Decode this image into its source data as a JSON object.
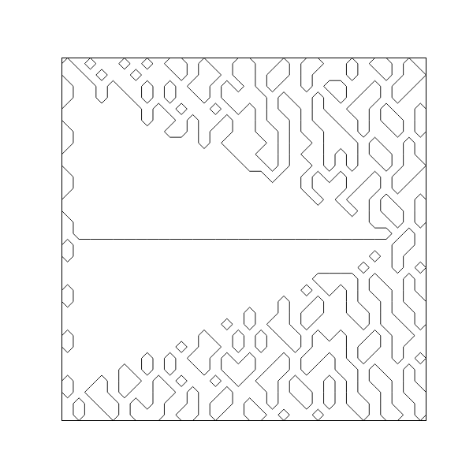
{
  "chart_data": {
    "type": "contour",
    "tick_labels": false,
    "color": "#000000",
    "xlim": [
      0,
      1
    ],
    "ylim": [
      -1,
      1
    ],
    "levels": [
      0
    ],
    "z": [
      [
        1,
        -1,
        1,
        -1,
        -1,
        1,
        -1,
        1,
        -1,
        1,
        1,
        -1,
        1,
        -1,
        -1,
        1,
        1,
        -1,
        -1,
        1,
        -1,
        1,
        1,
        -1,
        -1,
        1,
        -1,
        1,
        1,
        -1,
        1,
        -1
      ],
      [
        1,
        1,
        -1,
        1,
        -1,
        -1,
        1,
        -1,
        -1,
        -1,
        1,
        -1,
        1,
        1,
        -1,
        1,
        1,
        -1,
        1,
        1,
        -1,
        1,
        -1,
        -1,
        -1,
        1,
        -1,
        -1,
        1,
        -1,
        1,
        1
      ],
      [
        -1,
        1,
        1,
        -1,
        1,
        -1,
        -1,
        1,
        -1,
        1,
        -1,
        1,
        1,
        -1,
        1,
        -1,
        1,
        -1,
        1,
        -1,
        -1,
        1,
        -1,
        1,
        1,
        -1,
        -1,
        1,
        -1,
        1,
        1,
        -1
      ],
      [
        -1,
        1,
        1,
        -1,
        1,
        1,
        -1,
        1,
        -1,
        1,
        -1,
        -1,
        1,
        -1,
        1,
        1,
        1,
        1,
        -1,
        1,
        -1,
        -1,
        1,
        -1,
        1,
        -1,
        1,
        1,
        -1,
        1,
        -1,
        -1
      ],
      [
        1,
        1,
        1,
        1,
        1,
        1,
        1,
        -1,
        1,
        -1,
        1,
        -1,
        -1,
        1,
        -1,
        1,
        -1,
        1,
        -1,
        1,
        1,
        -1,
        1,
        -1,
        -1,
        1,
        1,
        -1,
        1,
        -1,
        -1,
        1
      ],
      [
        1,
        1,
        1,
        1,
        1,
        1,
        1,
        -1,
        1,
        1,
        -1,
        1,
        -1,
        -1,
        1,
        -1,
        -1,
        1,
        -1,
        -1,
        1,
        -1,
        1,
        1,
        -1,
        -1,
        1,
        -1,
        1,
        1,
        -1,
        1
      ],
      [
        -1,
        1,
        1,
        1,
        1,
        1,
        1,
        1,
        1,
        -1,
        -1,
        1,
        -1,
        1,
        1,
        -1,
        -1,
        1,
        1,
        -1,
        1,
        -1,
        -1,
        1,
        1,
        -1,
        1,
        -1,
        -1,
        1,
        -1,
        1
      ],
      [
        -1,
        1,
        1,
        1,
        1,
        1,
        1,
        1,
        1,
        1,
        1,
        1,
        -1,
        1,
        -1,
        -1,
        -1,
        -1,
        1,
        -1,
        1,
        1,
        -1,
        1,
        1,
        1,
        -1,
        1,
        -1,
        -1,
        1,
        -1
      ],
      [
        1,
        1,
        1,
        1,
        1,
        1,
        1,
        1,
        1,
        1,
        1,
        1,
        1,
        1,
        1,
        -1,
        -1,
        1,
        1,
        -1,
        1,
        -1,
        -1,
        1,
        -1,
        1,
        -1,
        1,
        1,
        -1,
        1,
        -1
      ],
      [
        1,
        1,
        1,
        1,
        1,
        1,
        1,
        1,
        1,
        1,
        1,
        1,
        1,
        1,
        1,
        1,
        -1,
        -1,
        1,
        -1,
        1,
        1,
        -1,
        1,
        -1,
        1,
        -1,
        -1,
        1,
        -1,
        1,
        1
      ],
      [
        -1,
        1,
        1,
        1,
        1,
        1,
        1,
        1,
        1,
        1,
        1,
        1,
        1,
        1,
        1,
        1,
        1,
        1,
        -1,
        1,
        1,
        -1,
        1,
        -1,
        1,
        -1,
        -1,
        1,
        -1,
        1,
        1,
        -1
      ],
      [
        -1,
        1,
        1,
        1,
        1,
        1,
        1,
        1,
        1,
        1,
        1,
        1,
        1,
        1,
        1,
        1,
        1,
        1,
        1,
        1,
        1,
        -1,
        1,
        1,
        1,
        -1,
        1,
        1,
        -1,
        1,
        -1,
        -1
      ],
      [
        1,
        1,
        1,
        1,
        1,
        1,
        1,
        1,
        1,
        1,
        1,
        1,
        1,
        1,
        1,
        1,
        1,
        1,
        1,
        1,
        1,
        1,
        -1,
        1,
        -1,
        1,
        1,
        -1,
        1,
        -1,
        -1,
        1
      ],
      [
        1,
        1,
        1,
        1,
        1,
        1,
        1,
        1,
        1,
        1,
        1,
        1,
        1,
        1,
        1,
        1,
        1,
        1,
        1,
        1,
        1,
        1,
        1,
        1,
        1,
        -1,
        1,
        -1,
        1,
        1,
        -1,
        1
      ],
      [
        -1,
        1,
        1,
        1,
        1,
        1,
        1,
        1,
        1,
        1,
        1,
        1,
        1,
        1,
        1,
        1,
        1,
        1,
        1,
        1,
        1,
        1,
        1,
        1,
        1,
        1,
        1,
        -1,
        -1,
        1,
        -1,
        1
      ],
      [
        -1,
        1,
        1,
        1,
        1,
        1,
        1,
        1,
        1,
        1,
        1,
        1,
        1,
        1,
        1,
        1,
        1,
        1,
        1,
        1,
        1,
        1,
        1,
        1,
        1,
        1,
        1,
        1,
        1,
        -1,
        1,
        -1
      ],
      [
        1,
        -1,
        -1,
        -1,
        -1,
        -1,
        -1,
        -1,
        -1,
        -1,
        -1,
        -1,
        -1,
        -1,
        -1,
        -1,
        -1,
        -1,
        -1,
        -1,
        -1,
        -1,
        -1,
        -1,
        -1,
        -1,
        -1,
        -1,
        -1,
        1,
        1,
        -1
      ],
      [
        1,
        -1,
        -1,
        -1,
        -1,
        -1,
        -1,
        -1,
        -1,
        -1,
        -1,
        -1,
        -1,
        -1,
        -1,
        -1,
        -1,
        -1,
        -1,
        -1,
        -1,
        -1,
        -1,
        -1,
        -1,
        -1,
        -1,
        1,
        -1,
        1,
        -1,
        -1
      ],
      [
        -1,
        -1,
        -1,
        -1,
        -1,
        -1,
        -1,
        -1,
        -1,
        -1,
        -1,
        -1,
        -1,
        -1,
        -1,
        -1,
        -1,
        -1,
        -1,
        -1,
        -1,
        -1,
        -1,
        -1,
        -1,
        -1,
        1,
        -1,
        -1,
        1,
        -1,
        1
      ],
      [
        -1,
        -1,
        -1,
        -1,
        -1,
        -1,
        -1,
        -1,
        -1,
        -1,
        -1,
        -1,
        -1,
        -1,
        -1,
        -1,
        -1,
        -1,
        -1,
        -1,
        -1,
        -1,
        1,
        1,
        1,
        1,
        -1,
        1,
        -1,
        -1,
        1,
        -1
      ],
      [
        1,
        -1,
        -1,
        -1,
        -1,
        -1,
        -1,
        -1,
        -1,
        -1,
        -1,
        -1,
        -1,
        -1,
        -1,
        -1,
        -1,
        -1,
        -1,
        -1,
        -1,
        1,
        -1,
        1,
        -1,
        1,
        -1,
        1,
        1,
        -1,
        1,
        -1
      ],
      [
        1,
        -1,
        -1,
        -1,
        -1,
        -1,
        -1,
        -1,
        -1,
        -1,
        -1,
        -1,
        -1,
        -1,
        -1,
        -1,
        -1,
        -1,
        -1,
        1,
        -1,
        -1,
        1,
        -1,
        -1,
        1,
        -1,
        -1,
        1,
        -1,
        1,
        1
      ],
      [
        -1,
        -1,
        -1,
        -1,
        -1,
        -1,
        -1,
        -1,
        -1,
        -1,
        -1,
        -1,
        -1,
        -1,
        -1,
        -1,
        1,
        -1,
        -1,
        1,
        -1,
        1,
        1,
        -1,
        -1,
        1,
        1,
        -1,
        1,
        -1,
        -1,
        1
      ],
      [
        -1,
        -1,
        -1,
        -1,
        -1,
        -1,
        -1,
        -1,
        -1,
        -1,
        -1,
        -1,
        -1,
        -1,
        1,
        -1,
        1,
        -1,
        1,
        1,
        -1,
        1,
        -1,
        -1,
        -1,
        -1,
        1,
        -1,
        1,
        1,
        -1,
        1
      ],
      [
        1,
        -1,
        -1,
        -1,
        -1,
        -1,
        -1,
        -1,
        -1,
        -1,
        -1,
        -1,
        1,
        -1,
        -1,
        1,
        -1,
        1,
        -1,
        1,
        1,
        -1,
        1,
        -1,
        1,
        -1,
        -1,
        1,
        -1,
        1,
        1,
        -1
      ],
      [
        1,
        -1,
        -1,
        -1,
        -1,
        -1,
        -1,
        -1,
        -1,
        -1,
        1,
        -1,
        1,
        1,
        -1,
        1,
        -1,
        1,
        -1,
        -1,
        1,
        -1,
        1,
        1,
        1,
        -1,
        1,
        1,
        -1,
        1,
        -1,
        -1
      ],
      [
        -1,
        -1,
        -1,
        -1,
        -1,
        -1,
        -1,
        1,
        -1,
        1,
        -1,
        1,
        1,
        -1,
        1,
        -1,
        1,
        -1,
        -1,
        1,
        -1,
        1,
        1,
        -1,
        1,
        -1,
        1,
        -1,
        -1,
        1,
        -1,
        1
      ],
      [
        -1,
        -1,
        -1,
        -1,
        -1,
        1,
        -1,
        1,
        -1,
        1,
        -1,
        -1,
        1,
        -1,
        1,
        1,
        1,
        -1,
        1,
        1,
        -1,
        1,
        -1,
        -1,
        1,
        1,
        -1,
        1,
        -1,
        -1,
        1,
        -1
      ],
      [
        1,
        -1,
        -1,
        1,
        -1,
        1,
        1,
        -1,
        1,
        -1,
        1,
        -1,
        -1,
        1,
        -1,
        1,
        -1,
        1,
        1,
        -1,
        1,
        -1,
        -1,
        1,
        -1,
        1,
        -1,
        1,
        1,
        -1,
        1,
        -1
      ],
      [
        1,
        -1,
        1,
        1,
        -1,
        1,
        -1,
        -1,
        1,
        1,
        -1,
        1,
        -1,
        -1,
        1,
        -1,
        -1,
        -1,
        1,
        -1,
        1,
        1,
        -1,
        1,
        -1,
        1,
        -1,
        -1,
        1,
        -1,
        1,
        1
      ],
      [
        -1,
        1,
        -1,
        1,
        1,
        -1,
        1,
        -1,
        1,
        -1,
        -1,
        1,
        -1,
        1,
        1,
        -1,
        1,
        -1,
        1,
        -1,
        -1,
        1,
        -1,
        1,
        -1,
        1,
        1,
        -1,
        1,
        -1,
        -1,
        1
      ],
      [
        -1,
        1,
        -1,
        -1,
        1,
        -1,
        1,
        1,
        1,
        -1,
        1,
        1,
        -1,
        1,
        -1,
        -1,
        1,
        1,
        -1,
        1,
        -1,
        -1,
        1,
        -1,
        -1,
        -1,
        1,
        -1,
        1,
        1,
        -1,
        1
      ]
    ]
  }
}
